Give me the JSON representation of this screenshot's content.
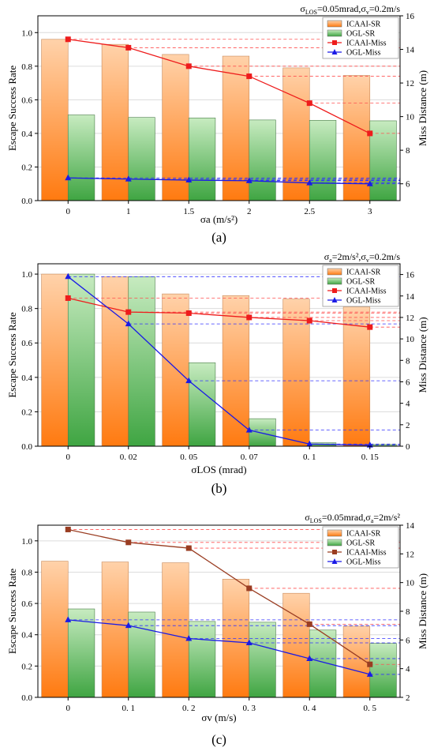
{
  "figure": {
    "panels": [
      "a",
      "b",
      "c"
    ]
  },
  "chart_data": [
    {
      "id": "a",
      "type": "bar",
      "panel_label": "(a)",
      "title": "σLOS=0.05mrad,σv=0.2m/s",
      "categories": [
        "0",
        "1",
        "1.5",
        "2",
        "2.5",
        "3"
      ],
      "xlabel": "σa (m/s²)",
      "ylabel": "Escape Success Rate",
      "y2label": "Miss Distance (m)",
      "ylim": [
        0,
        1.1
      ],
      "yticks": [
        0,
        0.2,
        0.4,
        0.6,
        0.8,
        1.0
      ],
      "y2lim": [
        5,
        16
      ],
      "y2ticks": [
        6,
        8,
        10,
        12,
        14,
        16
      ],
      "legend_position": "top-right",
      "series": [
        {
          "name": "ICAAI-SR",
          "kind": "bar",
          "axis": "left",
          "values": [
            0.96,
            0.93,
            0.87,
            0.86,
            0.79,
            0.745
          ]
        },
        {
          "name": "OGL-SR",
          "kind": "bar",
          "axis": "left",
          "values": [
            0.51,
            0.495,
            0.492,
            0.48,
            0.478,
            0.475
          ]
        },
        {
          "name": "ICAAI-Miss",
          "kind": "line",
          "axis": "right",
          "marker": "square",
          "values": [
            14.6,
            14.1,
            13.0,
            12.4,
            10.8,
            9.0
          ]
        },
        {
          "name": "OGL-Miss",
          "kind": "line",
          "axis": "right",
          "marker": "triangle",
          "values": [
            6.35,
            6.28,
            6.22,
            6.18,
            6.05,
            6.0
          ]
        }
      ]
    },
    {
      "id": "b",
      "type": "bar",
      "panel_label": "(b)",
      "title": "σa=2m/s²,σv=0.2m/s",
      "categories": [
        "0",
        "0. 02",
        "0. 05",
        "0. 07",
        "0. 1",
        "0. 15"
      ],
      "xlabel": "σLOS (mrad)",
      "ylabel": "Escape Success Rate",
      "y2label": "Miss Distance (m)",
      "ylim": [
        0,
        1.06
      ],
      "yticks": [
        0,
        0.2,
        0.4,
        0.6,
        0.8,
        1.0
      ],
      "y2lim": [
        0,
        17
      ],
      "y2ticks": [
        0,
        2,
        4,
        6,
        8,
        10,
        12,
        14,
        16
      ],
      "legend_position": "top-right",
      "series": [
        {
          "name": "ICAAI-SR",
          "kind": "bar",
          "axis": "left",
          "values": [
            1.0,
            0.985,
            0.885,
            0.875,
            0.855,
            0.81
          ]
        },
        {
          "name": "OGL-SR",
          "kind": "bar",
          "axis": "left",
          "values": [
            1.0,
            0.985,
            0.485,
            0.16,
            0.02,
            0.01
          ]
        },
        {
          "name": "ICAAI-Miss",
          "kind": "line",
          "axis": "right",
          "marker": "square",
          "values": [
            13.8,
            12.5,
            12.4,
            12.0,
            11.7,
            11.1
          ]
        },
        {
          "name": "OGL-Miss",
          "kind": "line",
          "axis": "right",
          "marker": "triangle",
          "values": [
            15.8,
            11.4,
            6.1,
            1.5,
            0.2,
            0.1
          ]
        }
      ]
    },
    {
      "id": "c",
      "type": "bar",
      "panel_label": "(c)",
      "title": "σLOS=0.05mrad,σa=2m/s²",
      "categories": [
        "0",
        "0. 1",
        "0. 2",
        "0. 3",
        "0. 4",
        "0. 5"
      ],
      "xlabel": "σv (m/s)",
      "ylabel": "Escape Success Rate",
      "y2label": "Miss Distance (m)",
      "ylim": [
        0,
        1.1
      ],
      "yticks": [
        0,
        0.2,
        0.4,
        0.6,
        0.8,
        1.0
      ],
      "y2lim": [
        2,
        14
      ],
      "y2ticks": [
        2,
        4,
        6,
        8,
        10,
        12,
        14
      ],
      "legend_position": "top-right",
      "series": [
        {
          "name": "ICAAI-SR",
          "kind": "bar",
          "axis": "left",
          "values": [
            0.87,
            0.865,
            0.86,
            0.755,
            0.665,
            0.455
          ]
        },
        {
          "name": "OGL-SR",
          "kind": "bar",
          "axis": "left",
          "values": [
            0.565,
            0.545,
            0.485,
            0.48,
            0.43,
            0.345
          ]
        },
        {
          "name": "ICAAI-Miss",
          "kind": "line",
          "axis": "right",
          "marker": "square",
          "values": [
            13.7,
            12.8,
            12.4,
            9.6,
            7.1,
            4.3
          ]
        },
        {
          "name": "OGL-Miss",
          "kind": "line",
          "axis": "right",
          "marker": "triangle",
          "values": [
            7.4,
            7.0,
            6.1,
            5.8,
            4.7,
            3.6
          ]
        }
      ]
    }
  ],
  "colors": {
    "icaai_bar_top": "#ffd2aa",
    "icaai_bar_bottom": "#ff7a10",
    "ogl_bar_top": "#c7ebc0",
    "ogl_bar_bottom": "#3fa542",
    "icaai_line_a": "#ee1c1c",
    "icaai_line_c": "#9a3d22",
    "ogl_line": "#1a1ae6",
    "ref_icaai": "#ff5050",
    "ref_ogl": "#3232ff"
  }
}
